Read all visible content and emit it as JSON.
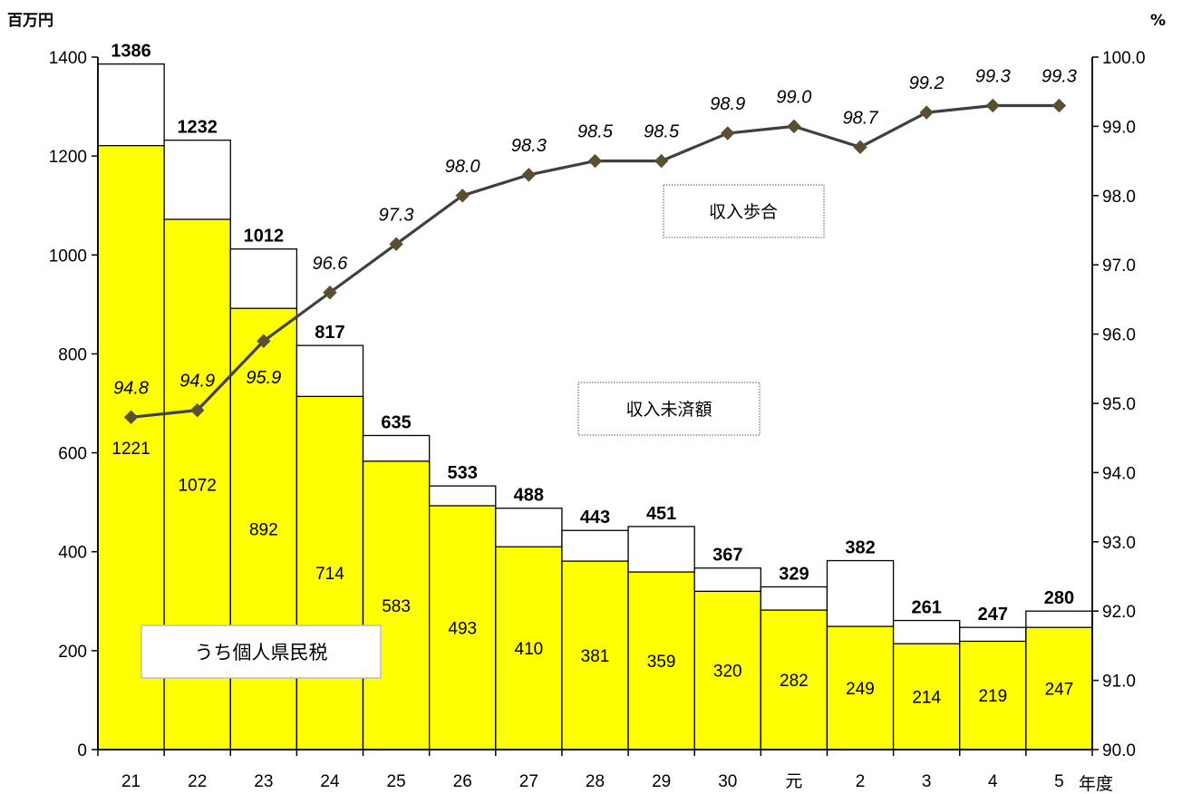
{
  "chart_data": {
    "type": "bar",
    "y_left_unit": "百万円",
    "y_right_unit": "%",
    "x_unit": "年度",
    "categories": [
      "21",
      "22",
      "23",
      "24",
      "25",
      "26",
      "27",
      "28",
      "29",
      "30",
      "元",
      "2",
      "3",
      "4",
      "5"
    ],
    "y_left_ticks": [
      "0",
      "200",
      "400",
      "600",
      "800",
      "1000",
      "1200",
      "1400"
    ],
    "y_right_ticks": [
      "90.0",
      "91.0",
      "92.0",
      "93.0",
      "94.0",
      "95.0",
      "96.0",
      "97.0",
      "98.0",
      "99.0",
      "100.0"
    ],
    "ylim_left": [
      0,
      1400
    ],
    "ylim_right": [
      90.0,
      100.0
    ],
    "series": [
      {
        "name": "収入未済額",
        "kind": "bar-total",
        "values": [
          1386,
          1232,
          1012,
          817,
          635,
          533,
          488,
          443,
          451,
          367,
          329,
          382,
          261,
          247,
          280
        ],
        "labels": [
          "1386",
          "1232",
          "1012",
          "817",
          "635",
          "533",
          "488",
          "443",
          "451",
          "367",
          "329",
          "382",
          "261",
          "247",
          "280"
        ],
        "color": "#ffffff"
      },
      {
        "name": "うち個人県民税",
        "kind": "bar-part",
        "values": [
          1221,
          1072,
          892,
          714,
          583,
          493,
          410,
          381,
          359,
          320,
          282,
          249,
          214,
          219,
          247
        ],
        "labels": [
          "1221",
          "1072",
          "892",
          "714",
          "583",
          "493",
          "410",
          "381",
          "359",
          "320",
          "282",
          "249",
          "214",
          "219",
          "247"
        ],
        "color": "#ffff00"
      },
      {
        "name": "収入歩合",
        "kind": "line",
        "axis": "right",
        "values": [
          94.8,
          94.9,
          95.9,
          96.6,
          97.3,
          98.0,
          98.3,
          98.5,
          98.5,
          98.9,
          99.0,
          98.7,
          99.2,
          99.3,
          99.3
        ],
        "labels": [
          "94.8",
          "94.9",
          "95.9",
          "96.6",
          "97.3",
          "98.0",
          "98.3",
          "98.5",
          "98.5",
          "98.9",
          "99.0",
          "98.7",
          "99.2",
          "99.3",
          "99.3"
        ],
        "color": "#404040",
        "marker_color": "#5a5030"
      }
    ]
  }
}
